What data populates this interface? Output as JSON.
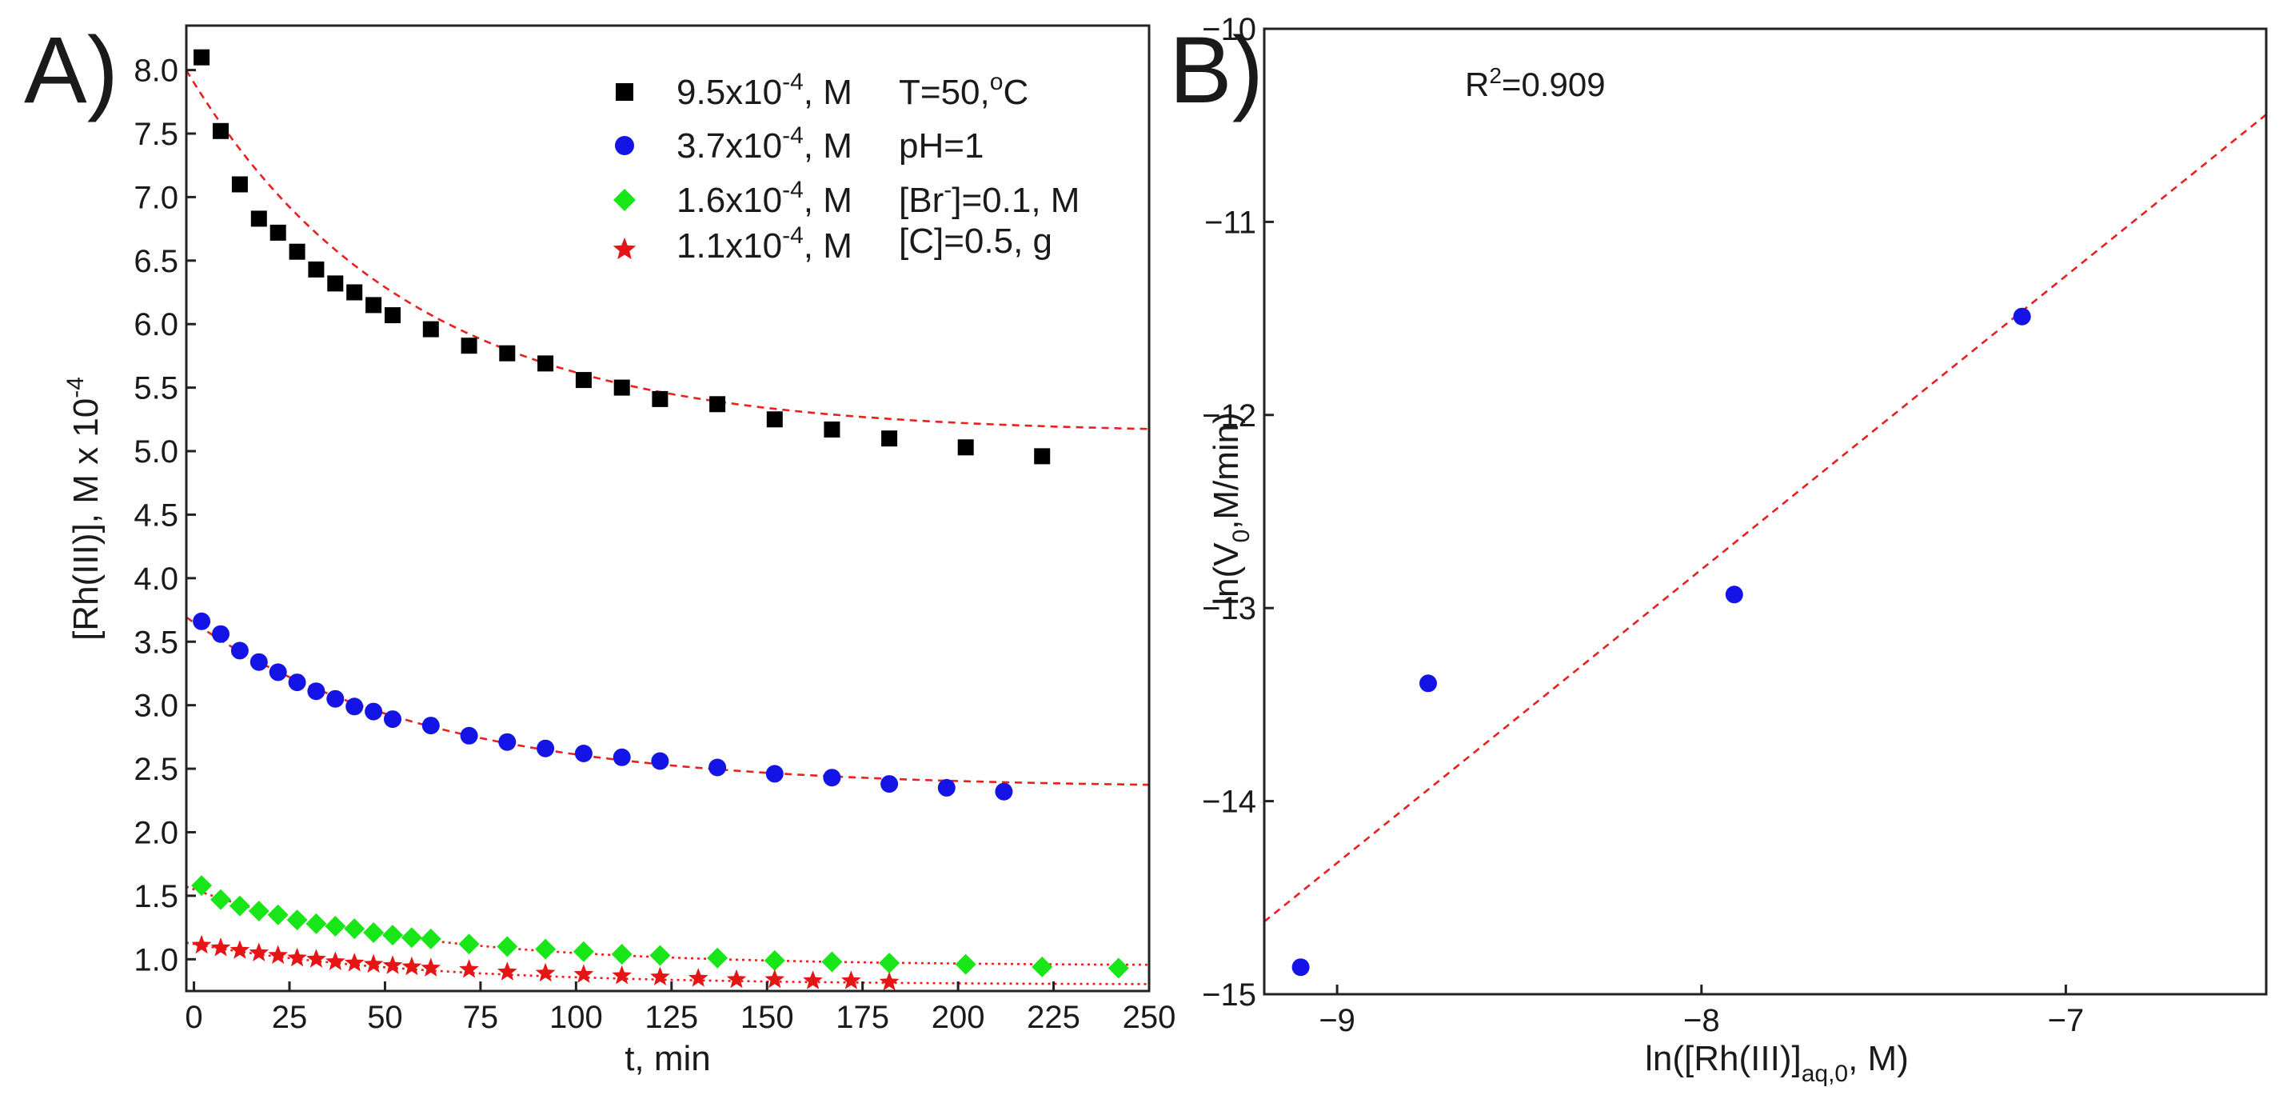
{
  "chart_data": [
    {
      "panel": "A)",
      "type": "scatter",
      "xlabel": "t, min",
      "ylabel": "[Rh(III)], M x 10",
      "ylabel_exp": "-4",
      "xlim": [
        -2,
        250
      ],
      "ylim": [
        0.75,
        8.35
      ],
      "xticks": [
        0,
        25,
        50,
        75,
        100,
        125,
        150,
        175,
        200,
        225,
        250
      ],
      "yticks": [
        1.0,
        1.5,
        2.0,
        2.5,
        3.0,
        3.5,
        4.0,
        4.5,
        5.0,
        5.5,
        6.0,
        6.5,
        7.0,
        7.5,
        8.0
      ],
      "conditions": [
        {
          "main": "T=50,",
          "sup": "o",
          "tail": "C"
        },
        {
          "main": "pH=1",
          "sup": "",
          "tail": ""
        },
        {
          "main": "[Br",
          "sup": "-",
          "tail": "]=0.1, M"
        },
        {
          "main": "[C]=0.5, g",
          "sup": "",
          "tail": ""
        }
      ],
      "series": [
        {
          "name": "9.5x10-4, M",
          "label_main": "9.5x10",
          "label_exp": "-4",
          "label_tail": ", M",
          "marker": "square",
          "color": "#000000",
          "x": [
            2,
            7,
            12,
            17,
            22,
            27,
            32,
            37,
            42,
            47,
            52,
            62,
            72,
            82,
            92,
            102,
            112,
            122,
            137,
            152,
            167,
            182,
            202,
            222
          ],
          "y": [
            8.1,
            7.52,
            7.1,
            6.83,
            6.72,
            6.57,
            6.43,
            6.32,
            6.25,
            6.15,
            6.07,
            5.96,
            5.83,
            5.77,
            5.69,
            5.56,
            5.5,
            5.41,
            5.37,
            5.25,
            5.17,
            5.1,
            5.03,
            4.96
          ],
          "fit": {
            "y0": 5.14,
            "a": 2.76,
            "k": 0.0175,
            "x_end": 250,
            "style": "dashed"
          }
        },
        {
          "name": "3.7x10-4, M",
          "label_main": "3.7x10",
          "label_exp": "-4",
          "label_tail": ", M",
          "marker": "circle",
          "color": "#1414e6",
          "x": [
            2,
            7,
            12,
            17,
            22,
            27,
            32,
            37,
            42,
            47,
            52,
            62,
            72,
            82,
            92,
            102,
            112,
            122,
            137,
            152,
            167,
            182,
            197,
            212
          ],
          "y": [
            3.66,
            3.56,
            3.43,
            3.34,
            3.26,
            3.18,
            3.11,
            3.05,
            2.99,
            2.95,
            2.89,
            2.84,
            2.76,
            2.71,
            2.66,
            2.62,
            2.59,
            2.56,
            2.51,
            2.46,
            2.43,
            2.38,
            2.35,
            2.32
          ],
          "fit": {
            "y0": 2.35,
            "a": 1.3,
            "k": 0.016,
            "x_end": 250,
            "style": "dashed"
          }
        },
        {
          "name": "1.6x10-4, M",
          "label_main": "1.6x10",
          "label_exp": "-4",
          "label_tail": ", M",
          "marker": "diamond",
          "color": "#19e619",
          "x": [
            2,
            7,
            12,
            17,
            22,
            27,
            32,
            37,
            42,
            47,
            52,
            57,
            62,
            72,
            82,
            92,
            102,
            112,
            122,
            137,
            152,
            167,
            182,
            202,
            222,
            242
          ],
          "y": [
            1.58,
            1.47,
            1.42,
            1.38,
            1.35,
            1.31,
            1.28,
            1.26,
            1.24,
            1.21,
            1.19,
            1.17,
            1.16,
            1.12,
            1.1,
            1.08,
            1.06,
            1.04,
            1.03,
            1.01,
            0.99,
            0.98,
            0.97,
            0.96,
            0.94,
            0.93
          ],
          "fit": {
            "y0": 0.95,
            "a": 0.6,
            "k": 0.018,
            "x_end": 250,
            "style": "dotted"
          }
        },
        {
          "name": "1.1x10-4, M",
          "label_main": "1.1x10",
          "label_exp": "-4",
          "label_tail": ", M",
          "marker": "star",
          "color": "#e61414",
          "x": [
            2,
            7,
            12,
            17,
            22,
            27,
            32,
            37,
            42,
            47,
            52,
            57,
            62,
            72,
            82,
            92,
            102,
            112,
            122,
            132,
            142,
            152,
            162,
            172,
            182
          ],
          "y": [
            1.11,
            1.09,
            1.07,
            1.05,
            1.03,
            1.01,
            1.0,
            0.98,
            0.97,
            0.96,
            0.95,
            0.94,
            0.93,
            0.92,
            0.9,
            0.89,
            0.88,
            0.87,
            0.86,
            0.85,
            0.84,
            0.84,
            0.83,
            0.83,
            0.82
          ],
          "fit": {
            "y0": 0.8,
            "a": 0.32,
            "k": 0.017,
            "x_end": 250,
            "style": "dotted"
          }
        }
      ]
    },
    {
      "panel": "B)",
      "type": "scatter",
      "xlabel_main": "ln([Rh(III)]",
      "xlabel_sub": "aq,0",
      "xlabel_tail": ", M)",
      "ylabel_main": "ln(V",
      "ylabel_sub": "0",
      "ylabel_tail": ",M/min)",
      "xlim": [
        -9.2,
        -6.45
      ],
      "ylim": [
        -15,
        -10
      ],
      "xticks": [
        -9,
        -8,
        -7
      ],
      "yticks": [
        -15,
        -14,
        -13,
        -12,
        -11,
        -10
      ],
      "r2_main": "R",
      "r2_sup": "2",
      "r2_tail": "=0.909",
      "points": {
        "x": [
          -9.1,
          -8.75,
          -7.91,
          -7.12
        ],
        "y": [
          -14.86,
          -13.39,
          -12.93,
          -11.49
        ],
        "color": "#1414e6"
      },
      "fit": {
        "slope": 1.52,
        "intercept": -0.64,
        "style": "dashed"
      }
    }
  ]
}
